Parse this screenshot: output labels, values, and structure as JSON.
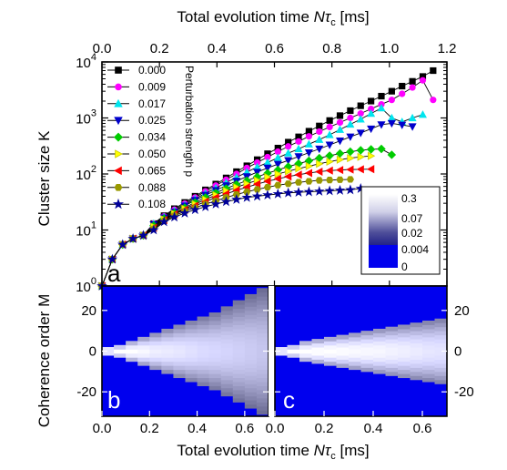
{
  "colors": {
    "background_blue": "#0000ee",
    "series": [
      "#000000",
      "#ff00ff",
      "#00e5ee",
      "#0000cc",
      "#00cc00",
      "#ffff00",
      "#ff0000",
      "#999900",
      "#000099"
    ]
  },
  "chart_data": [
    {
      "panel": "a",
      "type": "line",
      "title": "",
      "xlabel_prefix": "Total evolution time ",
      "xlabel_var": "Nτ",
      "xlabel_sub": "c",
      "xlabel_unit": " [ms]",
      "ylabel": "Cluster size K",
      "xaxis_position": "top",
      "xlim": [
        0.0,
        1.2
      ],
      "ylim": [
        1,
        10000
      ],
      "yscale": "log",
      "xticks": [
        "0.0",
        "0.2",
        "0.4",
        "0.6",
        "0.8",
        "1.0",
        "1.2"
      ],
      "yticks": [
        {
          "base": "10",
          "exp": "0",
          "value": 1
        },
        {
          "base": "10",
          "exp": "1",
          "value": 10
        },
        {
          "base": "10",
          "exp": "2",
          "value": 100
        },
        {
          "base": "10",
          "exp": "3",
          "value": 1000
        },
        {
          "base": "10",
          "exp": "4",
          "value": 10000
        }
      ],
      "legend_title": "Perturbation strength p",
      "legend_position": "top-left",
      "series": [
        {
          "name": "0.000",
          "marker": "square",
          "x": [
            0.0,
            0.036,
            0.072,
            0.108,
            0.144,
            0.18,
            0.216,
            0.252,
            0.288,
            0.324,
            0.36,
            0.396,
            0.432,
            0.468,
            0.504,
            0.54,
            0.576,
            0.612,
            0.648,
            0.684,
            0.72,
            0.756,
            0.792,
            0.828,
            0.864,
            0.9,
            0.936,
            0.972,
            1.008,
            1.044,
            1.08,
            1.116,
            1.152
          ],
          "y": [
            1,
            3,
            5.5,
            7,
            8,
            13,
            18,
            24,
            31,
            40,
            52,
            66,
            85,
            110,
            140,
            180,
            230,
            290,
            370,
            460,
            580,
            720,
            900,
            1100,
            1350,
            1650,
            2000,
            2450,
            3000,
            3700,
            4500,
            5500,
            7000
          ]
        },
        {
          "name": "0.009",
          "marker": "circle",
          "x": [
            0.0,
            0.036,
            0.072,
            0.108,
            0.144,
            0.18,
            0.216,
            0.252,
            0.288,
            0.324,
            0.36,
            0.396,
            0.432,
            0.468,
            0.504,
            0.54,
            0.576,
            0.612,
            0.648,
            0.684,
            0.72,
            0.756,
            0.792,
            0.828,
            0.864,
            0.9,
            0.936,
            0.972,
            1.008,
            1.044,
            1.08,
            1.116,
            1.152
          ],
          "y": [
            1,
            3,
            5.5,
            7,
            8,
            13,
            17.5,
            23,
            29.5,
            38,
            49,
            62,
            79,
            100,
            128,
            160,
            200,
            250,
            310,
            380,
            470,
            570,
            690,
            830,
            1000,
            1200,
            1450,
            1750,
            2100,
            2700,
            3500,
            4700,
            2100
          ]
        },
        {
          "name": "0.017",
          "marker": "triangle-up",
          "x": [
            0.0,
            0.036,
            0.072,
            0.108,
            0.144,
            0.18,
            0.216,
            0.252,
            0.288,
            0.324,
            0.36,
            0.396,
            0.432,
            0.468,
            0.504,
            0.54,
            0.576,
            0.612,
            0.648,
            0.684,
            0.72,
            0.756,
            0.792,
            0.828,
            0.864,
            0.9,
            0.936,
            0.972,
            1.008,
            1.044,
            1.08,
            1.116
          ],
          "y": [
            1,
            3,
            5.5,
            7,
            8,
            13,
            17,
            22,
            28,
            36,
            45,
            56,
            70,
            87,
            108,
            133,
            160,
            195,
            235,
            280,
            340,
            410,
            500,
            620,
            770,
            950,
            1200,
            1500,
            1000,
            850,
            1000,
            1150
          ]
        },
        {
          "name": "0.025",
          "marker": "triangle-down",
          "x": [
            0.0,
            0.036,
            0.072,
            0.108,
            0.144,
            0.18,
            0.216,
            0.252,
            0.288,
            0.324,
            0.36,
            0.396,
            0.432,
            0.468,
            0.504,
            0.54,
            0.576,
            0.612,
            0.648,
            0.684,
            0.72,
            0.756,
            0.792,
            0.828,
            0.864,
            0.9,
            0.936,
            0.972,
            1.008,
            1.044,
            1.08
          ],
          "y": [
            1,
            3,
            5.5,
            7,
            8,
            12.5,
            16.5,
            21,
            27,
            34,
            42,
            51,
            62,
            75,
            90,
            108,
            128,
            150,
            175,
            205,
            240,
            280,
            330,
            390,
            460,
            540,
            640,
            760,
            800,
            750,
            700
          ]
        },
        {
          "name": "0.034",
          "marker": "diamond",
          "x": [
            0.0,
            0.036,
            0.072,
            0.108,
            0.144,
            0.18,
            0.216,
            0.252,
            0.288,
            0.324,
            0.36,
            0.396,
            0.432,
            0.468,
            0.504,
            0.54,
            0.576,
            0.612,
            0.648,
            0.684,
            0.72,
            0.756,
            0.792,
            0.828,
            0.864,
            0.9,
            0.936,
            0.972,
            1.008
          ],
          "y": [
            1,
            3,
            5.5,
            7,
            8,
            12,
            16,
            20,
            25,
            31,
            38,
            46,
            55,
            65,
            76,
            89,
            103,
            118,
            135,
            153,
            172,
            192,
            212,
            232,
            250,
            265,
            275,
            280,
            220
          ]
        },
        {
          "name": "0.050",
          "marker": "triangle-right",
          "x": [
            0.0,
            0.036,
            0.072,
            0.108,
            0.144,
            0.18,
            0.216,
            0.252,
            0.288,
            0.324,
            0.36,
            0.396,
            0.432,
            0.468,
            0.504,
            0.54,
            0.576,
            0.612,
            0.648,
            0.684,
            0.72,
            0.756,
            0.792,
            0.828,
            0.864,
            0.9,
            0.936
          ],
          "y": [
            1,
            3,
            5.5,
            7,
            8,
            11.5,
            15.5,
            19.5,
            24,
            29,
            35,
            42,
            50,
            58,
            67,
            77,
            88,
            100,
            112,
            125,
            138,
            152,
            166,
            180,
            192,
            202,
            210
          ]
        },
        {
          "name": "0.065",
          "marker": "triangle-left",
          "x": [
            0.0,
            0.036,
            0.072,
            0.108,
            0.144,
            0.18,
            0.216,
            0.252,
            0.288,
            0.324,
            0.36,
            0.396,
            0.432,
            0.468,
            0.504,
            0.54,
            0.576,
            0.612,
            0.648,
            0.684,
            0.72,
            0.756,
            0.792,
            0.828,
            0.864,
            0.9,
            0.936
          ],
          "y": [
            1,
            3,
            5.5,
            7,
            8,
            11,
            15,
            19,
            23,
            27,
            32,
            38,
            44,
            51,
            58,
            66,
            74,
            82,
            90,
            97,
            104,
            110,
            115,
            118,
            120,
            121,
            122
          ]
        },
        {
          "name": "0.088",
          "marker": "hexagon",
          "x": [
            0.0,
            0.036,
            0.072,
            0.108,
            0.144,
            0.18,
            0.216,
            0.252,
            0.288,
            0.324,
            0.36,
            0.396,
            0.432,
            0.468,
            0.504,
            0.54,
            0.576,
            0.612,
            0.648,
            0.684,
            0.72,
            0.756,
            0.792,
            0.828,
            0.864
          ],
          "y": [
            1,
            3,
            5.5,
            7,
            8,
            10.5,
            14.5,
            18,
            21.5,
            25,
            29,
            33,
            38,
            43,
            48,
            53,
            58,
            63,
            67,
            71,
            74,
            77,
            78,
            79,
            80
          ]
        },
        {
          "name": "0.108",
          "marker": "star",
          "x": [
            0.0,
            0.036,
            0.072,
            0.108,
            0.144,
            0.18,
            0.216,
            0.252,
            0.288,
            0.324,
            0.36,
            0.396,
            0.432,
            0.468,
            0.504,
            0.54,
            0.576,
            0.612,
            0.648,
            0.684,
            0.72,
            0.756,
            0.792,
            0.828,
            0.864,
            0.9
          ],
          "y": [
            1,
            3,
            5.5,
            7,
            8,
            10,
            14,
            17,
            20,
            23,
            26,
            29,
            32,
            35,
            38,
            40,
            42,
            44,
            46,
            47,
            48,
            49,
            50,
            51,
            52,
            55
          ]
        }
      ]
    },
    {
      "panel": "b",
      "type": "heatmap",
      "ylabel": "Coherence order M",
      "xlabel_prefix": "Total evolution time ",
      "xlabel_var": "Nτ",
      "xlabel_sub": "c",
      "xlabel_unit": " [ms]",
      "xlim": [
        0.0,
        0.7
      ],
      "ylim": [
        -32,
        32
      ],
      "xticks": [
        "0.0",
        "0.2",
        "0.4",
        "0.6"
      ],
      "yticks": [
        "20",
        "0",
        "-20"
      ],
      "time_bins": [
        0.025,
        0.075,
        0.125,
        0.175,
        0.225,
        0.275,
        0.325,
        0.375,
        0.425,
        0.475,
        0.525,
        0.575,
        0.625,
        0.675
      ],
      "max_coherence_order": [
        1,
        2,
        4,
        6,
        8,
        10,
        12,
        14,
        16,
        18,
        21,
        24,
        27,
        30
      ],
      "intensity_near_zero": [
        0.3,
        0.3,
        0.3,
        0.25,
        0.2,
        0.18,
        0.16,
        0.14,
        0.12,
        0.11,
        0.1,
        0.09,
        0.08,
        0.07
      ]
    },
    {
      "panel": "c",
      "type": "heatmap",
      "xlim": [
        0.0,
        0.7
      ],
      "ylim": [
        -32,
        32
      ],
      "xticks": [
        "0.0",
        "0.2",
        "0.4",
        "0.6"
      ],
      "yticks": [
        "20",
        "0",
        "-20"
      ],
      "time_bins": [
        0.025,
        0.075,
        0.125,
        0.175,
        0.225,
        0.275,
        0.325,
        0.375,
        0.425,
        0.475,
        0.525,
        0.575,
        0.625,
        0.675
      ],
      "max_coherence_order": [
        1,
        2,
        4,
        5,
        6,
        7,
        8,
        9,
        10,
        11,
        12,
        13,
        14,
        15
      ],
      "intensity_near_zero": [
        0.3,
        0.3,
        0.3,
        0.3,
        0.3,
        0.28,
        0.26,
        0.25,
        0.24,
        0.22,
        0.2,
        0.18,
        0.16,
        0.15
      ]
    }
  ],
  "colorbar": {
    "labels": [
      "0.3",
      "0.07",
      "0.02",
      "0.004",
      "0"
    ]
  }
}
